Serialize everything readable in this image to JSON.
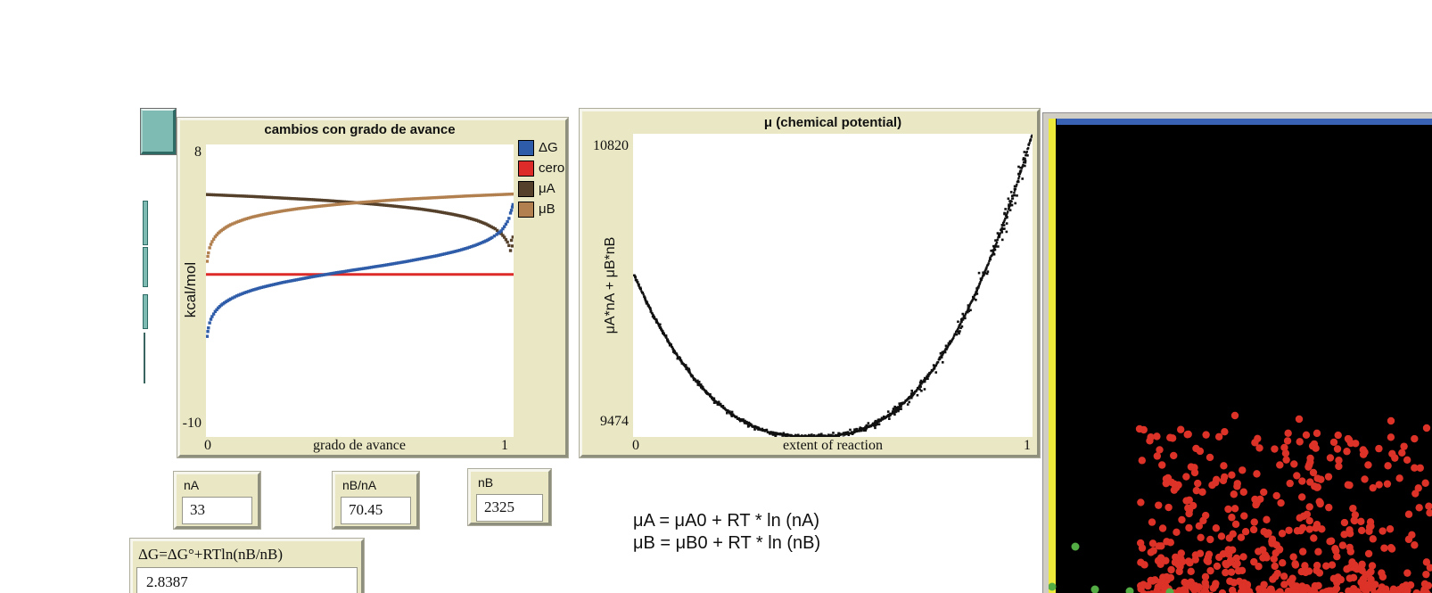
{
  "left_toolbar": {
    "button_color": "#7EBBB3",
    "button_border_dark": "#2F6B65",
    "button_border_light": "#E6F2F0"
  },
  "chart_data": [
    {
      "type": "line",
      "title": "cambios con grado de avance",
      "xlabel": "grado de avance",
      "ylabel": "kcal/mol",
      "xlim": [
        0,
        1
      ],
      "ylim": [
        -10,
        8
      ],
      "x_min_label": "0",
      "x_max_label": "1",
      "y_min_label": "-10",
      "y_max_label": "8",
      "grid": "off",
      "legend_position": "right",
      "legend": [
        {
          "label": "ΔG",
          "color": "#2E5CA8"
        },
        {
          "label": "cero",
          "color": "#DC2B28"
        },
        {
          "label": "μA",
          "color": "#55402B"
        },
        {
          "label": "μB",
          "color": "#B2804F"
        }
      ],
      "series": [
        {
          "name": "cero",
          "color": "#DC2B28",
          "style": "solid-line",
          "points": [
            [
              0,
              0
            ],
            [
              1,
              0
            ]
          ]
        },
        {
          "name": "μA",
          "color": "#55402B",
          "style": "dotted",
          "points": [
            [
              0,
              4.92
            ],
            [
              0.05,
              4.88
            ],
            [
              0.1,
              4.84
            ],
            [
              0.15,
              4.8
            ],
            [
              0.2,
              4.75
            ],
            [
              0.25,
              4.7
            ],
            [
              0.3,
              4.65
            ],
            [
              0.35,
              4.6
            ],
            [
              0.4,
              4.54
            ],
            [
              0.45,
              4.47
            ],
            [
              0.5,
              4.4
            ],
            [
              0.55,
              4.32
            ],
            [
              0.6,
              4.23
            ],
            [
              0.65,
              4.13
            ],
            [
              0.7,
              4.02
            ],
            [
              0.75,
              3.88
            ],
            [
              0.8,
              3.71
            ],
            [
              0.84,
              3.55
            ],
            [
              0.88,
              3.33
            ],
            [
              0.91,
              3.11
            ],
            [
              0.94,
              2.81
            ],
            [
              0.96,
              2.51
            ],
            [
              0.97,
              2.29
            ],
            [
              0.98,
              1.99
            ],
            [
              0.985,
              1.78
            ],
            [
              0.99,
              1.47
            ],
            [
              0.993,
              2.1
            ],
            [
              0.996,
              1.75
            ],
            [
              0.998,
              2.3
            ]
          ]
        },
        {
          "name": "μB",
          "color": "#B2804F",
          "style": "dotted",
          "points": [
            [
              0.004,
              0.81
            ],
            [
              0.006,
              1.11
            ],
            [
              0.008,
              1.33
            ],
            [
              0.012,
              1.64
            ],
            [
              0.016,
              1.85
            ],
            [
              0.02,
              2.02
            ],
            [
              0.03,
              2.32
            ],
            [
              0.04,
              2.54
            ],
            [
              0.05,
              2.7
            ],
            [
              0.065,
              2.9
            ],
            [
              0.08,
              3.06
            ],
            [
              0.1,
              3.22
            ],
            [
              0.125,
              3.39
            ],
            [
              0.15,
              3.53
            ],
            [
              0.175,
              3.64
            ],
            [
              0.2,
              3.74
            ],
            [
              0.25,
              3.91
            ],
            [
              0.3,
              4.05
            ],
            [
              0.35,
              4.16
            ],
            [
              0.4,
              4.26
            ],
            [
              0.45,
              4.35
            ],
            [
              0.5,
              4.43
            ],
            [
              0.55,
              4.5
            ],
            [
              0.6,
              4.57
            ],
            [
              0.65,
              4.63
            ],
            [
              0.7,
              4.68
            ],
            [
              0.75,
              4.73
            ],
            [
              0.8,
              4.78
            ],
            [
              0.85,
              4.83
            ],
            [
              0.9,
              4.87
            ],
            [
              0.95,
              4.91
            ],
            [
              1,
              4.95
            ]
          ]
        },
        {
          "name": "ΔG",
          "color": "#2E5CA8",
          "style": "dotted",
          "points": [
            [
              0.004,
              -3.81
            ],
            [
              0.006,
              -3.51
            ],
            [
              0.008,
              -3.29
            ],
            [
              0.012,
              -2.98
            ],
            [
              0.016,
              -2.76
            ],
            [
              0.02,
              -2.59
            ],
            [
              0.03,
              -2.28
            ],
            [
              0.04,
              -2.06
            ],
            [
              0.05,
              -1.88
            ],
            [
              0.065,
              -1.68
            ],
            [
              0.08,
              -1.51
            ],
            [
              0.1,
              -1.32
            ],
            [
              0.125,
              -1.13
            ],
            [
              0.15,
              -0.97
            ],
            [
              0.175,
              -0.83
            ],
            [
              0.2,
              -0.71
            ],
            [
              0.225,
              -0.6
            ],
            [
              0.25,
              -0.49
            ],
            [
              0.275,
              -0.4
            ],
            [
              0.3,
              -0.31
            ],
            [
              0.325,
              -0.22
            ],
            [
              0.35,
              -0.13
            ],
            [
              0.375,
              -0.05
            ],
            [
              0.4,
              0.03
            ],
            [
              0.425,
              0.11
            ],
            [
              0.45,
              0.18
            ],
            [
              0.475,
              0.26
            ],
            [
              0.5,
              0.33
            ],
            [
              0.525,
              0.4
            ],
            [
              0.55,
              0.48
            ],
            [
              0.575,
              0.55
            ],
            [
              0.6,
              0.63
            ],
            [
              0.625,
              0.71
            ],
            [
              0.65,
              0.79
            ],
            [
              0.675,
              0.88
            ],
            [
              0.7,
              0.97
            ],
            [
              0.725,
              1.06
            ],
            [
              0.75,
              1.15
            ],
            [
              0.775,
              1.26
            ],
            [
              0.8,
              1.37
            ],
            [
              0.825,
              1.49
            ],
            [
              0.85,
              1.63
            ],
            [
              0.875,
              1.79
            ],
            [
              0.9,
              1.98
            ],
            [
              0.915,
              2.11
            ],
            [
              0.93,
              2.27
            ],
            [
              0.945,
              2.46
            ],
            [
              0.96,
              2.68
            ],
            [
              0.97,
              2.94
            ],
            [
              0.98,
              3.25
            ],
            [
              0.985,
              3.45
            ],
            [
              0.99,
              3.78
            ],
            [
              0.993,
              3.95
            ],
            [
              0.996,
              4.15
            ],
            [
              0.998,
              4.3
            ]
          ]
        }
      ]
    },
    {
      "type": "scatter",
      "title": "μ (chemical potential)",
      "xlabel": "extent of reaction",
      "ylabel": "μA*nA + μB*nB",
      "xlim": [
        0,
        1
      ],
      "ylim": [
        9474,
        10820
      ],
      "x_min_label": "0",
      "x_max_label": "1",
      "y_min_label": "9474",
      "y_max_label": "10820",
      "grid": "off",
      "point_color": "#111111",
      "curve_points": [
        [
          0,
          10200
        ],
        [
          0.05,
          10015
        ],
        [
          0.1,
          9862
        ],
        [
          0.15,
          9738
        ],
        [
          0.2,
          9641
        ],
        [
          0.25,
          9570
        ],
        [
          0.3,
          9521
        ],
        [
          0.35,
          9491
        ],
        [
          0.4,
          9477
        ],
        [
          0.45,
          9474
        ],
        [
          0.5,
          9477
        ],
        [
          0.55,
          9493
        ],
        [
          0.6,
          9526
        ],
        [
          0.65,
          9581
        ],
        [
          0.7,
          9661
        ],
        [
          0.75,
          9770
        ],
        [
          0.8,
          9909
        ],
        [
          0.85,
          10081
        ],
        [
          0.9,
          10289
        ],
        [
          0.95,
          10535
        ],
        [
          1,
          10820
        ]
      ],
      "scatter_spec": {
        "count": 470,
        "seed": 13,
        "noise_base": 5,
        "noise_right": 75
      }
    }
  ],
  "equations": {
    "line1": "μA = μA0 + RT * ln (nA)",
    "line2": "μB = μB0 + RT * ln (nB)"
  },
  "monitors": [
    {
      "label": "nA",
      "value": "33"
    },
    {
      "label": "nB/nA",
      "value": "70.45"
    },
    {
      "label": "nB",
      "value": "2325"
    }
  ],
  "delta_g_monitor": {
    "label": "ΔG=ΔG°+RTln(nB/nB)",
    "value": "2.8387"
  },
  "world": {
    "bg_color": "#000000",
    "top_bar_color": "#3A62B4",
    "left_strip_color": "#EDEA3B",
    "frame_color": "#d0cdc5",
    "red_particles": {
      "color": "#DC3227",
      "radius": 4.2,
      "count": 560,
      "seed": 7,
      "x_min": 1279,
      "x_max": 1604,
      "y_base": 668,
      "y_spread": 185,
      "sparse_count": 12,
      "sparse_seed": 11,
      "sparse_y_min": 505,
      "sparse_y_max": 575,
      "outliers": [
        [
          1278,
          481
        ],
        [
          1340,
          530
        ],
        [
          1385,
          466
        ],
        [
          1457,
          470
        ],
        [
          1515,
          497
        ],
        [
          1560,
          472
        ],
        [
          1600,
          480
        ]
      ]
    },
    "green_particles": {
      "color": "#53AC44",
      "radius": 4.5,
      "dots": [
        [
          1206,
          613
        ],
        [
          1180,
          658
        ],
        [
          1228,
          661
        ],
        [
          1267,
          663
        ],
        [
          1162,
          663
        ],
        [
          1312,
          664
        ]
      ]
    }
  }
}
